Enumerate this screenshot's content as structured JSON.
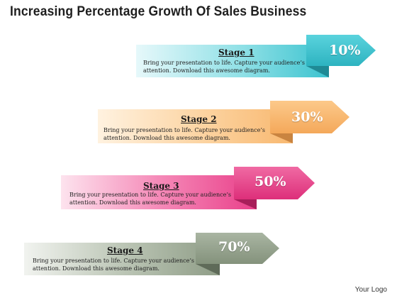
{
  "title": "Increasing Percentage Growth Of Sales Business",
  "stages": [
    {
      "label": "Stage 1",
      "description": "Bring your presentation to life. Capture your audience’s attention. Download this awesome diagram.",
      "percent": "10%",
      "color": "#3cc3cf"
    },
    {
      "label": "Stage 2",
      "description": "Bring your presentation to life. Capture your audience’s attention. Download this awesome diagram.",
      "percent": "30%",
      "color": "#f8b870"
    },
    {
      "label": "Stage 3",
      "description": "Bring your presentation to life. Capture your audience’s attention. Download this awesome diagram.",
      "percent": "50%",
      "color": "#e9408a"
    },
    {
      "label": "Stage 4",
      "description": "Bring your presentation to life. Capture your audience’s attention. Download this awesome diagram.",
      "percent": "70%",
      "color": "#8f9d87"
    }
  ],
  "logo": "Your Logo"
}
